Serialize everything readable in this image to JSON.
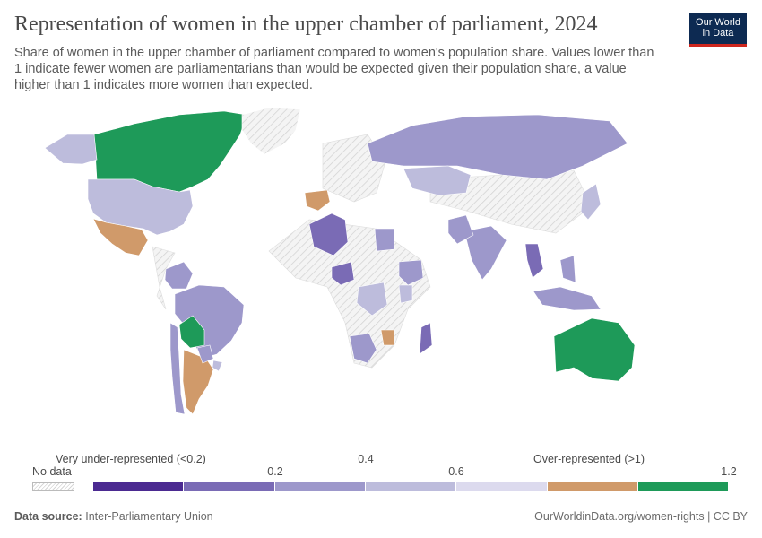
{
  "header": {
    "title": "Representation of women in the upper chamber of parliament, 2024",
    "subtitle": "Share of women in the upper chamber of parliament compared to women's population share. Values lower than 1 indicate fewer women are parliamentarians than would be expected given their population share, a value higher than 1 indicates more women than expected."
  },
  "logo": {
    "line1": "Our World",
    "line2": "in Data"
  },
  "colors": {
    "bin1": "#4b2a91",
    "bin2": "#7a6bb5",
    "bin3": "#9d98cb",
    "bin4": "#bdbcdc",
    "bin5": "#dcdaee",
    "bin6": "#d09a6a",
    "bin7": "#1e9a59",
    "no_data": "#e8e8e8"
  },
  "legend": {
    "no_data_label": "No data",
    "label_low": "Very under-represented (<0.2)",
    "label_high": "Over-represented (>1)",
    "ticks": [
      "0.2",
      "0.4",
      "0.6",
      "1.2"
    ]
  },
  "regions": [
    {
      "name": "Canada",
      "bin": "bin7"
    },
    {
      "name": "United States",
      "bin": "bin4"
    },
    {
      "name": "Alaska",
      "bin": "bin4"
    },
    {
      "name": "Mexico",
      "bin": "bin6"
    },
    {
      "name": "Greenland",
      "bin": "no_data"
    },
    {
      "name": "Brazil",
      "bin": "bin3"
    },
    {
      "name": "Bolivia",
      "bin": "bin7"
    },
    {
      "name": "Argentina",
      "bin": "bin6"
    },
    {
      "name": "Paraguay",
      "bin": "bin3"
    },
    {
      "name": "Uruguay",
      "bin": "bin4"
    },
    {
      "name": "Colombia",
      "bin": "bin3"
    },
    {
      "name": "Chile",
      "bin": "bin3"
    },
    {
      "name": "Spain",
      "bin": "bin6"
    },
    {
      "name": "Algeria",
      "bin": "bin2"
    },
    {
      "name": "Egypt",
      "bin": "bin3"
    },
    {
      "name": "Nigeria",
      "bin": "bin2"
    },
    {
      "name": "Russia",
      "bin": "bin3"
    },
    {
      "name": "Kazakhstan",
      "bin": "bin4"
    },
    {
      "name": "India",
      "bin": "bin3"
    },
    {
      "name": "Pakistan",
      "bin": "bin3"
    },
    {
      "name": "Japan",
      "bin": "bin4"
    },
    {
      "name": "Thailand",
      "bin": "bin2"
    },
    {
      "name": "Philippines",
      "bin": "bin3"
    },
    {
      "name": "Indonesia",
      "bin": "bin3"
    },
    {
      "name": "Australia",
      "bin": "bin7"
    },
    {
      "name": "Madagascar",
      "bin": "bin2"
    },
    {
      "name": "South Africa",
      "bin": "bin3"
    },
    {
      "name": "Zimbabwe",
      "bin": "bin6"
    },
    {
      "name": "DR Congo",
      "bin": "bin4"
    },
    {
      "name": "Kenya",
      "bin": "bin4"
    },
    {
      "name": "Ethiopia",
      "bin": "bin3"
    }
  ],
  "footer": {
    "source_label": "Data source:",
    "source": "Inter-Parliamentary Union",
    "link": "OurWorldinData.org/women-rights | CC BY"
  }
}
